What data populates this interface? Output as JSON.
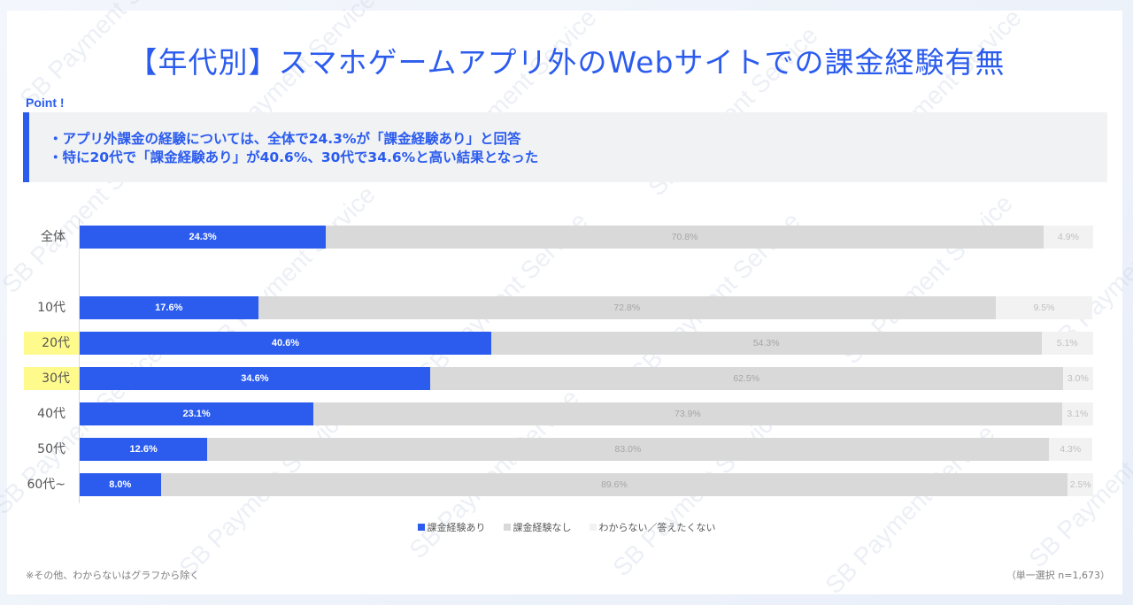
{
  "title": "【年代別】スマホゲームアプリ外のWebサイトでの課金経験有無",
  "point": {
    "label": "Point !",
    "lines": [
      "・アプリ外課金の経験については、全体で24.3%が「課金経験あり」と回答",
      "・特に20代で「課金経験あり」が40.6%、30代で34.6%と高い結果となった"
    ]
  },
  "watermark_text": "SB Payment Service",
  "colors": {
    "accent": "#2b5cee",
    "yes": "#2b5cee",
    "no": "#d9d9d9",
    "dont_know": "#f2f2f2",
    "highlight": "#fffa8c"
  },
  "chart_data": {
    "type": "bar",
    "orientation": "horizontal",
    "stacked": true,
    "percent_stacked": true,
    "categories": [
      "全体",
      "10代",
      "20代",
      "30代",
      "40代",
      "50代",
      "60代~"
    ],
    "highlighted_categories": [
      "20代",
      "30代"
    ],
    "series": [
      {
        "name": "課金経験あり",
        "color": "#2b5cee",
        "values": [
          24.3,
          17.6,
          40.6,
          34.6,
          23.1,
          12.6,
          8.0
        ]
      },
      {
        "name": "課金経験なし",
        "color": "#d9d9d9",
        "values": [
          70.8,
          72.8,
          54.3,
          62.5,
          73.9,
          83.0,
          89.6
        ]
      },
      {
        "name": "わからない／答えたくない",
        "color": "#f2f2f2",
        "values": [
          4.9,
          9.5,
          5.1,
          3.0,
          3.1,
          4.3,
          2.5
        ]
      }
    ],
    "labels": {
      "yes": [
        "24.3%",
        "17.6%",
        "40.6%",
        "34.6%",
        "23.1%",
        "12.6%",
        "8.0%"
      ],
      "no": [
        "70.8%",
        "72.8%",
        "54.3%",
        "62.5%",
        "73.9%",
        "83.0%",
        "89.6%"
      ],
      "dont_know": [
        "4.9%",
        "9.5%",
        "5.1%",
        "3.0%",
        "3.1%",
        "4.3%",
        "2.5%"
      ]
    },
    "title": "【年代別】スマホゲームアプリ外のWebサイトでの課金経験有無",
    "xlabel": "",
    "ylabel": "",
    "xlim": [
      0,
      100
    ],
    "grid": false,
    "legend_position": "bottom"
  },
  "legend": [
    "課金経験あり",
    "課金経験なし",
    "わからない／答えたくない"
  ],
  "footnote": "※その他、わからないはグラフから除く",
  "sample_note": "（単一選択 n=1,673）"
}
